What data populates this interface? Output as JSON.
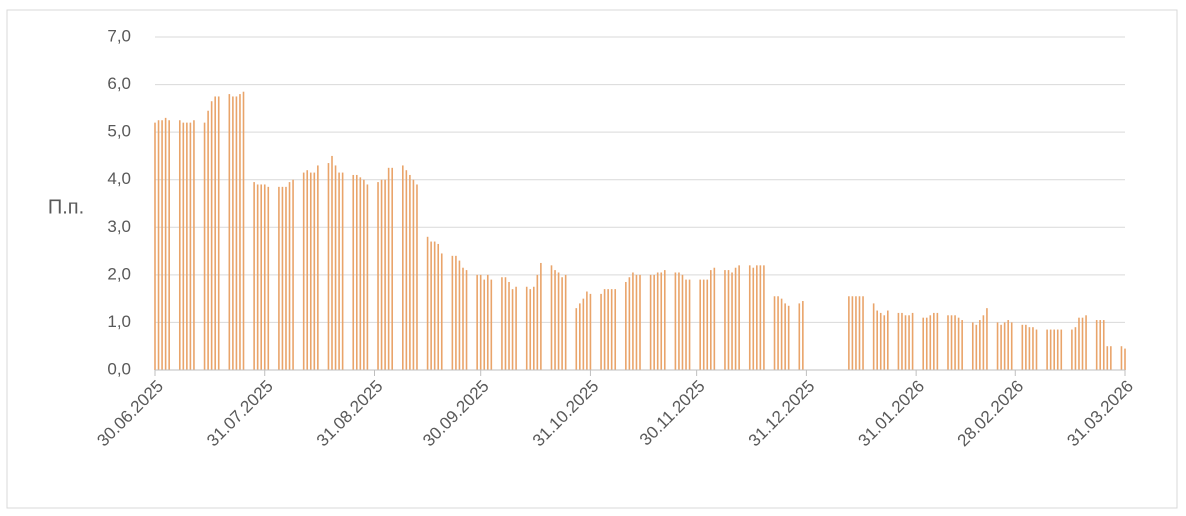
{
  "chart_data": {
    "type": "bar",
    "y_label": "П.п.",
    "color": "#e9a46a",
    "grid": true,
    "ylim": [
      0,
      7
    ],
    "yticks": [
      {
        "value": 0,
        "label": "0,0"
      },
      {
        "value": 1,
        "label": "1,0"
      },
      {
        "value": 2,
        "label": "2,0"
      },
      {
        "value": 3,
        "label": "3,0"
      },
      {
        "value": 4,
        "label": "4,0"
      },
      {
        "value": 5,
        "label": "5,0"
      },
      {
        "value": 6,
        "label": "6,0"
      },
      {
        "value": 7,
        "label": "7,0"
      }
    ],
    "xlim": [
      "30.06.2025",
      "31.03.2026"
    ],
    "xticks": [
      "30.06.2025",
      "31.07.2025",
      "31.08.2025",
      "30.09.2025",
      "31.10.2025",
      "30.11.2025",
      "31.12.2025",
      "31.01.2026",
      "28.02.2026",
      "31.03.2026"
    ],
    "x": [
      "30.06.2025",
      "01.07.2025",
      "02.07.2025",
      "03.07.2025",
      "04.07.2025",
      "07.07.2025",
      "08.07.2025",
      "09.07.2025",
      "10.07.2025",
      "11.07.2025",
      "14.07.2025",
      "15.07.2025",
      "16.07.2025",
      "17.07.2025",
      "18.07.2025",
      "21.07.2025",
      "22.07.2025",
      "23.07.2025",
      "24.07.2025",
      "25.07.2025",
      "28.07.2025",
      "29.07.2025",
      "30.07.2025",
      "31.07.2025",
      "01.08.2025",
      "04.08.2025",
      "05.08.2025",
      "06.08.2025",
      "07.08.2025",
      "08.08.2025",
      "11.08.2025",
      "12.08.2025",
      "13.08.2025",
      "14.08.2025",
      "15.08.2025",
      "18.08.2025",
      "19.08.2025",
      "20.08.2025",
      "21.08.2025",
      "22.08.2025",
      "25.08.2025",
      "26.08.2025",
      "27.08.2025",
      "28.08.2025",
      "29.08.2025",
      "01.09.2025",
      "02.09.2025",
      "03.09.2025",
      "04.09.2025",
      "05.09.2025",
      "08.09.2025",
      "09.09.2025",
      "10.09.2025",
      "11.09.2025",
      "12.09.2025",
      "15.09.2025",
      "16.09.2025",
      "17.09.2025",
      "18.09.2025",
      "19.09.2025",
      "22.09.2025",
      "23.09.2025",
      "24.09.2025",
      "25.09.2025",
      "26.09.2025",
      "29.09.2025",
      "30.09.2025",
      "01.10.2025",
      "02.10.2025",
      "03.10.2025",
      "06.10.2025",
      "07.10.2025",
      "08.10.2025",
      "09.10.2025",
      "10.10.2025",
      "13.10.2025",
      "14.10.2025",
      "15.10.2025",
      "16.10.2025",
      "17.10.2025",
      "20.10.2025",
      "21.10.2025",
      "22.10.2025",
      "23.10.2025",
      "24.10.2025",
      "27.10.2025",
      "28.10.2025",
      "29.10.2025",
      "30.10.2025",
      "31.10.2025",
      "03.11.2025",
      "04.11.2025",
      "05.11.2025",
      "06.11.2025",
      "07.11.2025",
      "10.11.2025",
      "11.11.2025",
      "12.11.2025",
      "13.11.2025",
      "14.11.2025",
      "17.11.2025",
      "18.11.2025",
      "19.11.2025",
      "20.11.2025",
      "21.11.2025",
      "24.11.2025",
      "25.11.2025",
      "26.11.2025",
      "27.11.2025",
      "28.11.2025",
      "01.12.2025",
      "02.12.2025",
      "03.12.2025",
      "04.12.2025",
      "05.12.2025",
      "08.12.2025",
      "09.12.2025",
      "10.12.2025",
      "11.12.2025",
      "12.12.2025",
      "15.12.2025",
      "16.12.2025",
      "17.12.2025",
      "18.12.2025",
      "19.12.2025",
      "22.12.2025",
      "23.12.2025",
      "24.12.2025",
      "25.12.2025",
      "26.12.2025",
      "29.12.2025",
      "30.12.2025",
      "12.01.2026",
      "13.01.2026",
      "14.01.2026",
      "15.01.2026",
      "16.01.2026",
      "19.01.2026",
      "20.01.2026",
      "21.01.2026",
      "22.01.2026",
      "23.01.2026",
      "26.01.2026",
      "27.01.2026",
      "28.01.2026",
      "29.01.2026",
      "30.01.2026",
      "02.02.2026",
      "03.02.2026",
      "04.02.2026",
      "05.02.2026",
      "06.02.2026",
      "09.02.2026",
      "10.02.2026",
      "11.02.2026",
      "12.02.2026",
      "13.02.2026",
      "16.02.2026",
      "17.02.2026",
      "18.02.2026",
      "19.02.2026",
      "20.02.2026",
      "23.02.2026",
      "24.02.2026",
      "25.02.2026",
      "26.02.2026",
      "27.02.2026",
      "02.03.2026",
      "03.03.2026",
      "04.03.2026",
      "05.03.2026",
      "06.03.2026",
      "09.03.2026",
      "10.03.2026",
      "11.03.2026",
      "12.03.2026",
      "13.03.2026",
      "16.03.2026",
      "17.03.2026",
      "18.03.2026",
      "19.03.2026",
      "20.03.2026",
      "23.03.2026",
      "24.03.2026",
      "25.03.2026",
      "26.03.2026",
      "27.03.2026",
      "30.03.2026",
      "31.03.2026"
    ],
    "values": [
      5.2,
      5.25,
      5.25,
      5.3,
      5.25,
      5.25,
      5.2,
      5.2,
      5.2,
      5.25,
      5.2,
      5.45,
      5.65,
      5.75,
      5.75,
      5.8,
      5.75,
      5.75,
      5.8,
      5.85,
      3.95,
      3.9,
      3.9,
      3.9,
      3.85,
      3.85,
      3.85,
      3.85,
      3.95,
      4.0,
      4.15,
      4.2,
      4.15,
      4.15,
      4.3,
      4.35,
      4.5,
      4.3,
      4.15,
      4.15,
      4.1,
      4.1,
      4.05,
      4.0,
      3.9,
      3.95,
      4.0,
      4.0,
      4.25,
      4.25,
      4.3,
      4.2,
      4.1,
      4.0,
      3.9,
      2.8,
      2.7,
      2.7,
      2.65,
      2.45,
      2.4,
      2.4,
      2.3,
      2.15,
      2.1,
      2.0,
      2.0,
      1.9,
      2.0,
      1.9,
      1.95,
      1.95,
      1.85,
      1.7,
      1.75,
      1.75,
      1.7,
      1.75,
      2.0,
      2.25,
      2.2,
      2.1,
      2.05,
      1.95,
      2.0,
      1.3,
      1.4,
      1.5,
      1.65,
      1.6,
      1.6,
      1.7,
      1.7,
      1.7,
      1.7,
      1.85,
      1.95,
      2.05,
      2.0,
      2.0,
      2.0,
      2.0,
      2.05,
      2.05,
      2.1,
      2.05,
      2.05,
      2.0,
      1.9,
      1.9,
      1.9,
      1.9,
      1.9,
      2.1,
      2.15,
      2.1,
      2.1,
      2.05,
      2.15,
      2.2,
      2.2,
      2.15,
      2.2,
      2.2,
      2.2,
      1.55,
      1.55,
      1.5,
      1.4,
      1.35,
      1.4,
      1.45,
      1.55,
      1.55,
      1.55,
      1.55,
      1.55,
      1.4,
      1.25,
      1.2,
      1.15,
      1.25,
      1.2,
      1.2,
      1.15,
      1.15,
      1.2,
      1.1,
      1.1,
      1.15,
      1.2,
      1.2,
      1.15,
      1.15,
      1.15,
      1.1,
      1.05,
      1.0,
      0.95,
      1.05,
      1.15,
      1.3,
      1.0,
      0.95,
      1.0,
      1.05,
      1.0,
      0.95,
      0.95,
      0.9,
      0.9,
      0.85,
      0.85,
      0.85,
      0.85,
      0.85,
      0.85,
      0.85,
      0.9,
      1.1,
      1.1,
      1.15,
      1.05,
      1.05,
      1.05,
      0.5,
      0.5,
      0.5,
      0.45
    ]
  }
}
